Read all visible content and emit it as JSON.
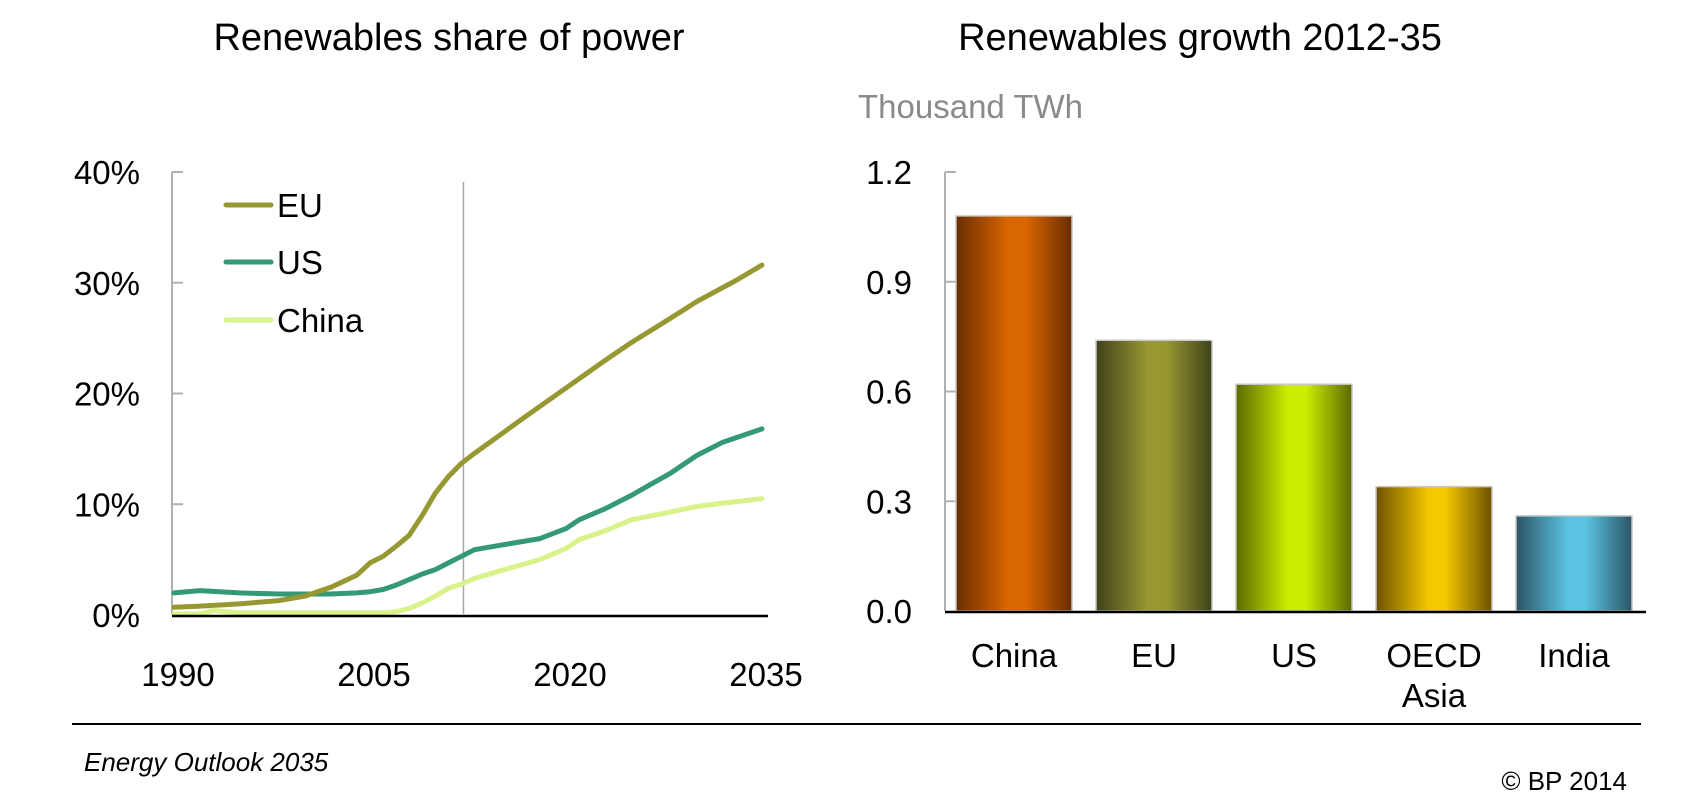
{
  "chart_data": [
    {
      "type": "line",
      "title": "Renewables share of power",
      "xlabel": "",
      "ylabel": "",
      "x_ticks": [
        "1990",
        "2005",
        "2020",
        "2035"
      ],
      "y_ticks": [
        "0%",
        "10%",
        "20%",
        "30%",
        "40%"
      ],
      "xlim": [
        1990,
        2035
      ],
      "ylim": [
        0,
        40
      ],
      "y_unit": "%",
      "grid": false,
      "reference_line": {
        "x": 2012,
        "note": "vertical divider between history and projection"
      },
      "legend_position": "top-left",
      "series": [
        {
          "name": "EU",
          "color": "#989832",
          "x": [
            1990,
            1992,
            1995,
            1998,
            2000,
            2002,
            2004,
            2005,
            2006,
            2007,
            2008,
            2009,
            2010,
            2011,
            2012,
            2013,
            2015,
            2017,
            2020,
            2023,
            2025,
            2028,
            2030,
            2033,
            2035
          ],
          "values": [
            0.7,
            0.8,
            1.0,
            1.3,
            1.7,
            2.5,
            3.6,
            4.7,
            5.3,
            6.2,
            7.2,
            9.0,
            11.0,
            12.5,
            13.7,
            14.6,
            16.3,
            18.0,
            20.5,
            23.0,
            24.6,
            26.8,
            28.3,
            30.2,
            31.6
          ]
        },
        {
          "name": "US",
          "color": "#339977",
          "x": [
            1990,
            1992,
            1995,
            1998,
            2000,
            2002,
            2004,
            2005,
            2006,
            2007,
            2008,
            2009,
            2010,
            2011,
            2012,
            2013,
            2015,
            2018,
            2020,
            2021,
            2023,
            2025,
            2028,
            2030,
            2032,
            2035
          ],
          "values": [
            2.0,
            2.2,
            2.0,
            1.9,
            1.9,
            1.9,
            2.0,
            2.1,
            2.3,
            2.7,
            3.2,
            3.7,
            4.1,
            4.7,
            5.3,
            5.9,
            6.3,
            6.9,
            7.8,
            8.6,
            9.6,
            10.8,
            12.8,
            14.4,
            15.6,
            16.8
          ]
        },
        {
          "name": "China",
          "color": "#d9f28a",
          "x": [
            1990,
            1992,
            1993,
            1995,
            2000,
            2005,
            2006,
            2007,
            2008,
            2009,
            2010,
            2011,
            2012,
            2013,
            2015,
            2018,
            2020,
            2021,
            2023,
            2025,
            2028,
            2030,
            2032,
            2035
          ],
          "values": [
            0.1,
            0.1,
            0.4,
            0.2,
            0.2,
            0.2,
            0.2,
            0.3,
            0.6,
            1.1,
            1.7,
            2.4,
            2.8,
            3.3,
            4.0,
            5.0,
            6.0,
            6.8,
            7.6,
            8.6,
            9.3,
            9.8,
            10.1,
            10.5
          ]
        }
      ]
    },
    {
      "type": "bar",
      "title": "Renewables growth 2012-35",
      "ylabel": "Thousand TWh",
      "categories": [
        "China",
        "EU",
        "US",
        "OECD Asia",
        "India"
      ],
      "category_lines": [
        [
          "China"
        ],
        [
          "EU"
        ],
        [
          "US"
        ],
        [
          "OECD",
          "Asia"
        ],
        [
          "India"
        ]
      ],
      "values": [
        1.08,
        0.74,
        0.62,
        0.34,
        0.26
      ],
      "colors": [
        "#d96600",
        "#989832",
        "#ccee00",
        "#f5c800",
        "#5cc3e3"
      ],
      "shadow_colors": [
        "#6a2c00",
        "#3f421a",
        "#5c6a00",
        "#6c5200",
        "#2a5564"
      ],
      "y_ticks": [
        "0.0",
        "0.3",
        "0.6",
        "0.9",
        "1.2"
      ],
      "ylim": [
        0,
        1.2
      ],
      "grid": false
    }
  ],
  "footer": {
    "source": "Energy Outlook 2035",
    "copyright": "© BP 2014"
  }
}
